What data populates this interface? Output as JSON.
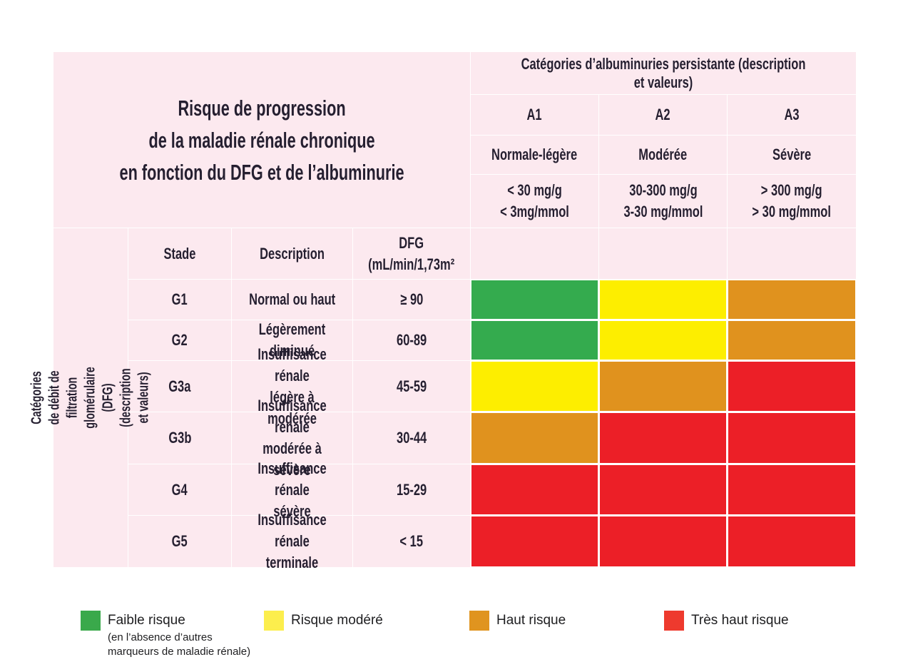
{
  "colors": {
    "green": "#34ab4e",
    "yellow": "#fdee00",
    "orange": "#e0921e",
    "red": "#ec1f27",
    "background_pink": "#fce9ef",
    "text_dark": "#251f30"
  },
  "table": {
    "title": "Risque de progression\nde la maladie rénale chronique\nen fonction du DFG et de l’albuminurie",
    "albuminuria": {
      "header": "Catégories d’albuminuries persistante (description et valeurs)",
      "columns": [
        {
          "code": "A1",
          "description": "Normale-légère",
          "values": "< 30 mg/g\n< 3mg/mmol"
        },
        {
          "code": "A2",
          "description": "Modérée",
          "values": "30-300 mg/g\n3-30 mg/mmol"
        },
        {
          "code": "A3",
          "description": "Sévère",
          "values": "> 300 mg/g\n> 30 mg/mmol"
        }
      ]
    },
    "dfg": {
      "side_label": "Catégories de débit de filtration glomérulaire (DFG)\n(description et valeurs)",
      "headers": {
        "stade": "Stade",
        "description": "Description",
        "dfg": "DFG\n(mL/min/1,73m²"
      }
    },
    "rows": [
      {
        "stade": "G1",
        "description": "Normal ou haut",
        "dfg": "≥ 90",
        "risks": [
          "green",
          "yellow",
          "orange"
        ]
      },
      {
        "stade": "G2",
        "description": "Légèrement diminué",
        "dfg": "60-89",
        "risks": [
          "green",
          "yellow",
          "orange"
        ]
      },
      {
        "stade": "G3a",
        "description": "Insuffisance rénale\nlégère à modérée",
        "dfg": "45-59",
        "risks": [
          "yellow",
          "orange",
          "red"
        ]
      },
      {
        "stade": "G3b",
        "description": "Insuffisance rénale\nmodérée à sévère",
        "dfg": "30-44",
        "risks": [
          "orange",
          "red",
          "red"
        ]
      },
      {
        "stade": "G4",
        "description": "Insuffisance rénale\nsévère",
        "dfg": "15-29",
        "risks": [
          "red",
          "red",
          "red"
        ]
      },
      {
        "stade": "G5",
        "description": "Insuffisance rénale\nterminale",
        "dfg": "< 15",
        "risks": [
          "red",
          "red",
          "red"
        ]
      }
    ]
  },
  "legend": {
    "items": [
      {
        "color": "#3aa94b",
        "label": "Faible risque",
        "sublabel": "(en l’absence d’autres\nmarqueurs de maladie rénale)"
      },
      {
        "color": "#fcee4d",
        "label": "Risque modéré",
        "sublabel": ""
      },
      {
        "color": "#e0941f",
        "label": "Haut risque",
        "sublabel": ""
      },
      {
        "color": "#ee3a2e",
        "label": "Très haut risque",
        "sublabel": ""
      }
    ]
  },
  "chart_data": {
    "type": "heatmap",
    "title": "Risque de progression de la maladie rénale chronique en fonction du DFG et de l’albuminurie",
    "x_categories": [
      "A1 (Normale-légère, < 30 mg/g, < 3mg/mmol)",
      "A2 (Modérée, 30-300 mg/g, 3-30 mg/mmol)",
      "A3 (Sévère, > 300 mg/g, > 30 mg/mmol)"
    ],
    "y_categories": [
      "G1 (Normal ou haut, ≥ 90)",
      "G2 (Légèrement diminué, 60-89)",
      "G3a (Insuffisance rénale légère à modérée, 45-59)",
      "G3b (Insuffisance rénale modérée à sévère, 30-44)",
      "G4 (Insuffisance rénale sévère, 15-29)",
      "G5 (Insuffisance rénale terminale, < 15)"
    ],
    "values": [
      [
        "Faible risque",
        "Risque modéré",
        "Haut risque"
      ],
      [
        "Faible risque",
        "Risque modéré",
        "Haut risque"
      ],
      [
        "Risque modéré",
        "Haut risque",
        "Très haut risque"
      ],
      [
        "Haut risque",
        "Très haut risque",
        "Très haut risque"
      ],
      [
        "Très haut risque",
        "Très haut risque",
        "Très haut risque"
      ],
      [
        "Très haut risque",
        "Très haut risque",
        "Très haut risque"
      ]
    ],
    "legend_position": "bottom",
    "legend": [
      "Faible risque",
      "Risque modéré",
      "Haut risque",
      "Très haut risque"
    ]
  }
}
